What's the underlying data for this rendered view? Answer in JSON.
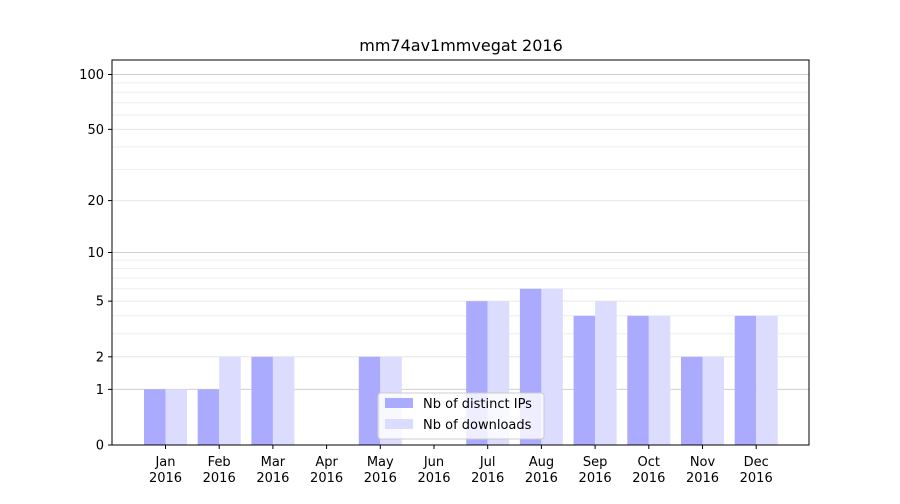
{
  "chart_data": {
    "type": "bar",
    "title": "mm74av1mmvegat 2016",
    "xlabel": "",
    "ylabel": "",
    "categories": [
      "Jan\n2016",
      "Feb\n2016",
      "Mar\n2016",
      "Apr\n2016",
      "May\n2016",
      "Jun\n2016",
      "Jul\n2016",
      "Aug\n2016",
      "Sep\n2016",
      "Oct\n2016",
      "Nov\n2016",
      "Dec\n2016"
    ],
    "series": [
      {
        "name": "Nb of distinct IPs",
        "values": [
          1,
          1,
          2,
          0,
          2,
          0,
          5,
          6,
          4,
          4,
          2,
          4
        ],
        "color": "#aaaaff"
      },
      {
        "name": "Nb of downloads",
        "values": [
          1,
          2,
          2,
          0,
          2,
          0,
          5,
          6,
          5,
          4,
          2,
          4
        ],
        "color": "#dcdcff"
      }
    ],
    "yscale": "log1p",
    "ylim": [
      0,
      120
    ],
    "yticks": [
      0,
      1,
      2,
      5,
      10,
      20,
      50,
      100
    ],
    "grid": true,
    "legend_position": "lower-center"
  }
}
